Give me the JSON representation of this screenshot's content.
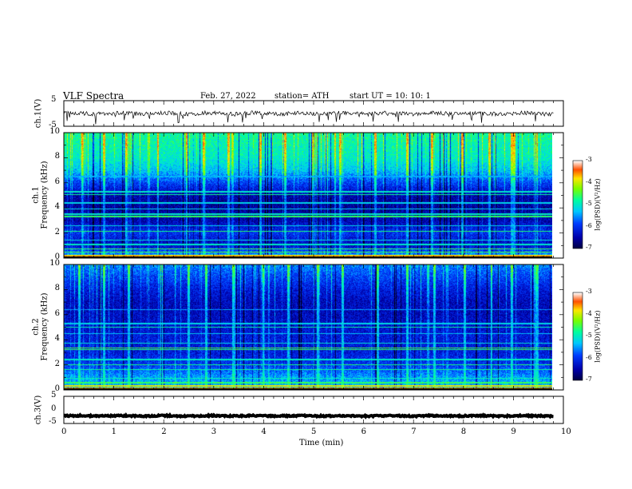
{
  "header": {
    "title": "VLF  Spectra",
    "date": "Feb. 27, 2022",
    "station": "station= ATH",
    "start": "start  UT  =    10: 10: 1"
  },
  "chart_data": [
    {
      "type": "line",
      "name": "ch1-waveform",
      "ylabel": "ch.1(V)",
      "ylim": [
        -5,
        5
      ],
      "yticks": [
        "5",
        "-5"
      ],
      "xlim": [
        0,
        10
      ],
      "x_extent": 9.8,
      "baseline": 0,
      "noise_amplitude": 0.8,
      "spike_amplitude": 4
    },
    {
      "type": "heatmap",
      "name": "ch1-spectrogram",
      "ylabel_line1": "ch.1",
      "ylabel_line2": "Frequency (kHz)",
      "ylim": [
        0,
        10
      ],
      "yticks": [
        "10",
        "8",
        "6",
        "4",
        "2",
        "0"
      ],
      "xlim": [
        0,
        10
      ],
      "x_extent": 9.8,
      "value_label": "log(PSD)(V²/Hz)",
      "colorbar_range": [
        -7,
        -3
      ],
      "colorbar_ticks": [
        "-3",
        "-4",
        "-5",
        "-6",
        "-7"
      ],
      "psd_profile_khz": [
        0,
        1,
        2,
        3,
        4,
        5,
        6,
        7,
        8,
        9,
        10
      ],
      "psd_profile_log": [
        -5.2,
        -6.4,
        -6.0,
        -6.5,
        -6.6,
        -6.5,
        -5.9,
        -5.3,
        -5.0,
        -4.9,
        -4.8
      ],
      "lines_khz": [
        0.1,
        0.2,
        0.45,
        0.7,
        1.05,
        1.4,
        2.1,
        2.55,
        3.3,
        3.5,
        3.9,
        4.4,
        5.05,
        5.3,
        6.5
      ],
      "lines_log": [
        -3.6,
        -3.8,
        -4.5,
        -4.6,
        -5.0,
        -5.1,
        -4.7,
        -5.2,
        -4.6,
        -5.0,
        -5.2,
        -5.2,
        -4.8,
        -5.0,
        -5.4
      ],
      "burst_times_min": [
        0.35,
        0.8,
        1.25,
        1.9,
        2.45,
        2.8,
        3.3,
        3.95,
        4.45,
        5.0,
        5.55,
        6.25,
        6.9,
        7.4,
        8.0,
        8.55,
        9.0,
        9.05,
        9.5
      ]
    },
    {
      "type": "heatmap",
      "name": "ch2-spectrogram",
      "ylabel_line1": "ch.2",
      "ylabel_line2": "Frequency (kHz)",
      "ylim": [
        0,
        10
      ],
      "yticks": [
        "10",
        "8",
        "6",
        "4",
        "2",
        "0"
      ],
      "xlim": [
        0,
        10
      ],
      "x_extent": 9.8,
      "value_label": "log(PSD)(V²/Hz)",
      "colorbar_range": [
        -7,
        -3
      ],
      "colorbar_ticks": [
        "-3",
        "-4",
        "-5",
        "-6",
        "-7"
      ],
      "psd_profile_khz": [
        0,
        1,
        2,
        3,
        4,
        5,
        6,
        7,
        8,
        9,
        10
      ],
      "psd_profile_log": [
        -5.4,
        -5.5,
        -6.0,
        -6.2,
        -6.2,
        -6.3,
        -6.4,
        -6.4,
        -6.2,
        -5.9,
        -5.6
      ],
      "lines_khz": [
        0.1,
        0.3,
        0.55,
        0.9,
        1.6,
        2.0,
        2.4,
        3.2,
        3.35,
        3.7,
        4.5,
        5.0,
        5.3,
        6.4
      ],
      "lines_log": [
        -3.7,
        -3.9,
        -4.6,
        -4.9,
        -4.8,
        -4.7,
        -5.0,
        -4.6,
        -4.5,
        -5.1,
        -5.3,
        -4.9,
        -5.2,
        -5.5
      ],
      "burst_times_min": [
        0.3,
        0.8,
        1.3,
        1.95,
        2.5,
        2.85,
        3.4,
        4.0,
        4.5,
        5.1,
        5.6,
        6.3,
        6.9,
        7.45,
        8.05,
        8.6,
        9.0,
        9.5
      ]
    },
    {
      "type": "line",
      "name": "ch3-waveform",
      "ylabel": "ch.3(V)",
      "ylim": [
        -5,
        5
      ],
      "yticks": [
        "5",
        "0",
        "-5"
      ],
      "xlim": [
        0,
        10
      ],
      "x_extent": 9.8,
      "baseline": -2.2,
      "noise_amplitude": 0.25,
      "spike_amplitude": 0
    }
  ],
  "xaxis": {
    "label": "Time  (min)",
    "ticks": [
      "0",
      "1",
      "2",
      "3",
      "4",
      "5",
      "6",
      "7",
      "8",
      "9",
      "10"
    ]
  }
}
